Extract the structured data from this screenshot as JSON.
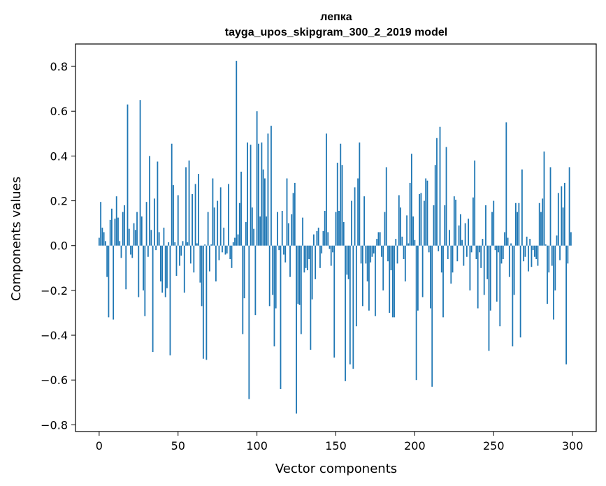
{
  "chart_data": {
    "type": "bar",
    "title": "лепка",
    "subtitle": "tayga_upos_skipgram_300_2_2019 model",
    "xlabel": "Vector components",
    "ylabel": "Components values",
    "xlim": [
      -15,
      315
    ],
    "ylim": [
      -0.83,
      0.9
    ],
    "xticks": [
      0,
      50,
      100,
      150,
      200,
      250,
      300
    ],
    "yticks": [
      -0.8,
      -0.6,
      -0.4,
      -0.2,
      0.0,
      0.2,
      0.4,
      0.6,
      0.8
    ],
    "ytick_labels": [
      "−0.8",
      "−0.6",
      "−0.4",
      "−0.2",
      "0.0",
      "0.2",
      "0.4",
      "0.6",
      "0.8"
    ],
    "grid": false,
    "bar_color": "#1f77b4",
    "x_start": 0,
    "values": [
      0.035,
      0.195,
      0.08,
      0.06,
      0.02,
      -0.14,
      -0.32,
      0.115,
      0.165,
      -0.33,
      0.12,
      0.22,
      0.125,
      0.02,
      -0.055,
      0.15,
      0.18,
      -0.195,
      0.63,
      0.075,
      -0.04,
      -0.055,
      0.1,
      0.07,
      0.15,
      -0.23,
      0.65,
      0.13,
      -0.2,
      -0.315,
      0.195,
      -0.05,
      0.4,
      0.07,
      -0.475,
      0.21,
      -0.02,
      0.375,
      0.06,
      -0.16,
      -0.21,
      0.08,
      -0.23,
      -0.19,
      0.015,
      -0.49,
      0.455,
      0.27,
      0.015,
      -0.135,
      0.225,
      -0.09,
      -0.045,
      0.02,
      -0.21,
      0.35,
      0.015,
      0.38,
      -0.08,
      0.23,
      -0.12,
      0.275,
      0.01,
      0.32,
      -0.165,
      -0.27,
      -0.505,
      0.005,
      -0.51,
      0.15,
      -0.115,
      0.005,
      0.3,
      0.17,
      -0.16,
      0.2,
      -0.065,
      0.26,
      -0.03,
      0.08,
      -0.04,
      -0.035,
      0.275,
      -0.06,
      -0.1,
      0.015,
      0.035,
      0.825,
      0.05,
      0.19,
      0.33,
      -0.395,
      -0.235,
      0.105,
      0.46,
      -0.685,
      0.45,
      0.17,
      0.075,
      -0.31,
      0.6,
      0.455,
      0.13,
      0.46,
      0.34,
      0.3,
      0.13,
      0.5,
      -0.27,
      0.535,
      -0.22,
      -0.45,
      -0.28,
      0.15,
      -0.02,
      -0.64,
      0.155,
      -0.04,
      -0.075,
      0.3,
      0.1,
      -0.14,
      0.14,
      0.235,
      0.28,
      -0.75,
      -0.26,
      -0.265,
      -0.395,
      0.125,
      -0.12,
      -0.1,
      -0.11,
      -0.06,
      -0.465,
      -0.24,
      0.05,
      -0.15,
      0.065,
      0.08,
      -0.1,
      -0.035,
      0.065,
      0.155,
      0.5,
      0.06,
      -0.015,
      -0.09,
      -0.03,
      -0.5,
      0.15,
      0.37,
      0.155,
      0.455,
      0.36,
      0.105,
      -0.605,
      -0.13,
      -0.15,
      -0.53,
      0.2,
      -0.55,
      0.26,
      -0.36,
      0.3,
      0.46,
      -0.08,
      -0.27,
      0.22,
      -0.08,
      -0.16,
      -0.29,
      -0.075,
      -0.05,
      -0.035,
      -0.315,
      0.03,
      0.06,
      0.06,
      -0.05,
      -0.2,
      0.15,
      0.35,
      -0.07,
      -0.3,
      -0.11,
      -0.32,
      -0.32,
      0.03,
      -0.08,
      0.225,
      0.17,
      0.04,
      -0.06,
      -0.16,
      0.135,
      0.01,
      0.28,
      0.41,
      0.13,
      0.025,
      -0.6,
      -0.29,
      0.23,
      0.235,
      -0.23,
      0.2,
      0.3,
      0.29,
      -0.03,
      -0.28,
      -0.63,
      0.18,
      0.36,
      0.48,
      -0.025,
      0.53,
      -0.12,
      -0.32,
      0.18,
      0.44,
      -0.06,
      0.07,
      -0.17,
      -0.12,
      0.22,
      0.205,
      -0.07,
      0.09,
      0.14,
      0.025,
      -0.09,
      0.1,
      -0.05,
      0.12,
      -0.2,
      -0.03,
      0.215,
      0.38,
      -0.06,
      -0.28,
      -0.03,
      -0.1,
      0.03,
      -0.22,
      0.18,
      -0.15,
      -0.47,
      -0.29,
      0.15,
      0.2,
      -0.02,
      -0.25,
      -0.03,
      -0.36,
      -0.08,
      -0.06,
      0.06,
      0.55,
      0.035,
      -0.14,
      0.01,
      -0.45,
      -0.22,
      0.19,
      0.15,
      0.19,
      -0.41,
      0.34,
      -0.07,
      -0.05,
      0.04,
      -0.115,
      0.03,
      -0.095,
      -0.02,
      -0.05,
      -0.06,
      -0.09,
      0.19,
      0.15,
      0.21,
      0.42,
      0.005,
      -0.26,
      -0.12,
      0.35,
      -0.09,
      -0.33,
      -0.2,
      0.045,
      0.235,
      -0.065,
      0.265,
      0.17,
      0.28,
      -0.53,
      -0.08,
      0.35,
      0.06
    ]
  }
}
